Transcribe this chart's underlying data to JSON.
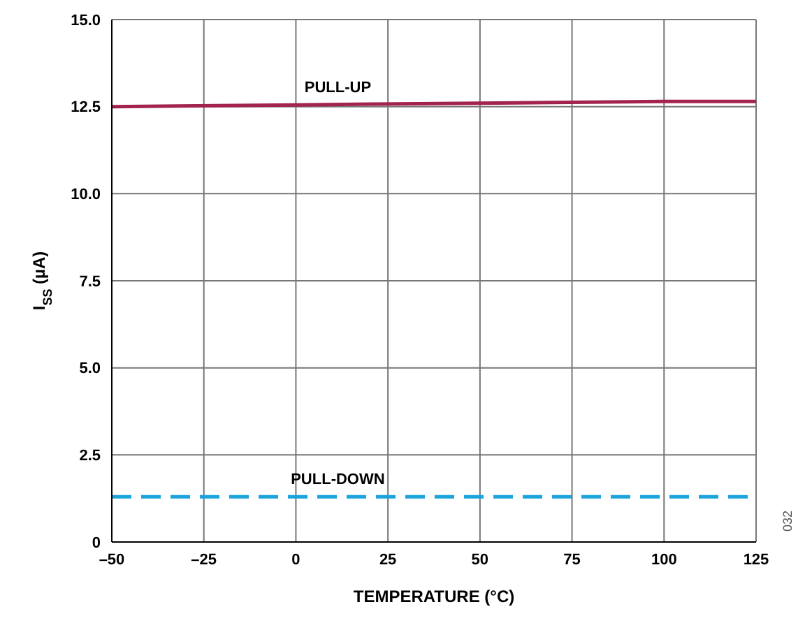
{
  "chart_data": {
    "type": "line",
    "xlabel": "TEMPERATURE (°C)",
    "ylabel": "I$_{SS}$ (µA)",
    "x": [
      -50,
      0,
      50,
      100,
      125
    ],
    "series": [
      {
        "name": "PULL-UP",
        "color": "#a3234f",
        "values": [
          12.5,
          12.55,
          12.6,
          12.65,
          12.65
        ],
        "line_style": "solid"
      },
      {
        "name": "PULL-DOWN",
        "color": "#1ba3dc",
        "values": [
          1.3,
          1.3,
          1.3,
          1.3,
          1.3
        ],
        "line_style": "dashed"
      }
    ],
    "xlim": [
      -50,
      125
    ],
    "xticks": [
      {
        "value": -50,
        "label": "–50"
      },
      {
        "value": -25,
        "label": "–25"
      },
      0,
      25,
      50,
      75,
      100,
      125
    ],
    "ylim": [
      0,
      15
    ],
    "yticks": [
      0,
      2.5,
      {
        "value": 5,
        "label": "5.0"
      },
      7.5,
      {
        "value": 10,
        "label": "10.0"
      },
      12.5,
      {
        "value": 15,
        "label": "15.0"
      }
    ],
    "grid": true,
    "legend": false,
    "marker": "none",
    "annotations": [
      "032"
    ]
  }
}
